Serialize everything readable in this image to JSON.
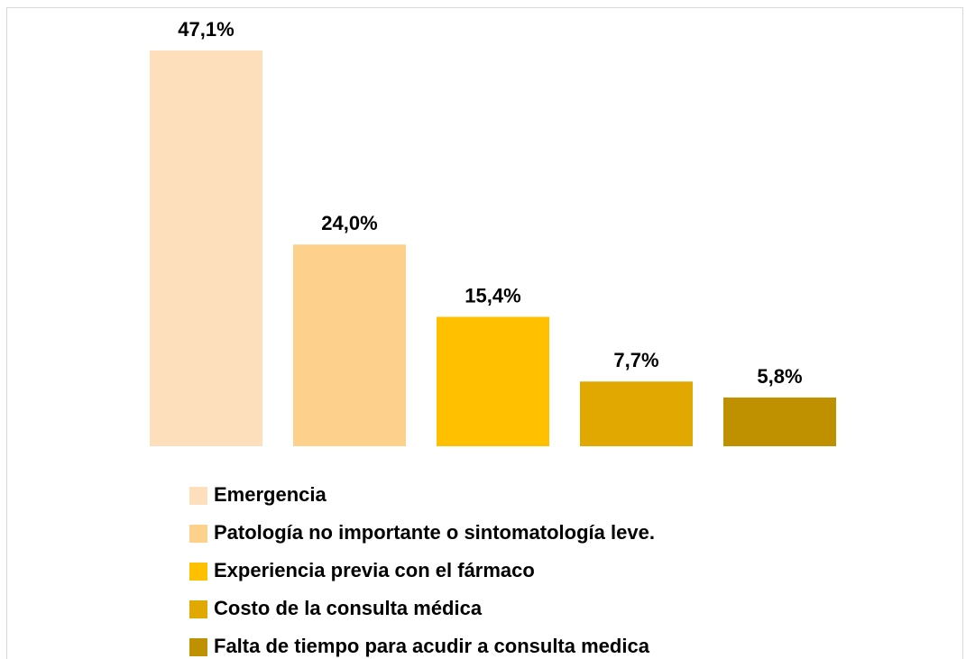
{
  "chart_data": {
    "type": "bar",
    "categories": [
      "Emergencia",
      "Patología no importante o sintomatología leve.",
      "Experiencia previa con el fármaco",
      "Costo de la consulta médica",
      "Falta de tiempo para acudir a consulta medica"
    ],
    "values": [
      47.1,
      24.0,
      15.4,
      7.7,
      5.8
    ],
    "value_labels": [
      "47,1%",
      "24,0%",
      "15,4%",
      "7,7%",
      "5,8%"
    ],
    "colors": [
      "#fde0bb",
      "#fdd08b",
      "#ffc000",
      "#e0a800",
      "#bf9000"
    ],
    "legend": "bottom"
  }
}
